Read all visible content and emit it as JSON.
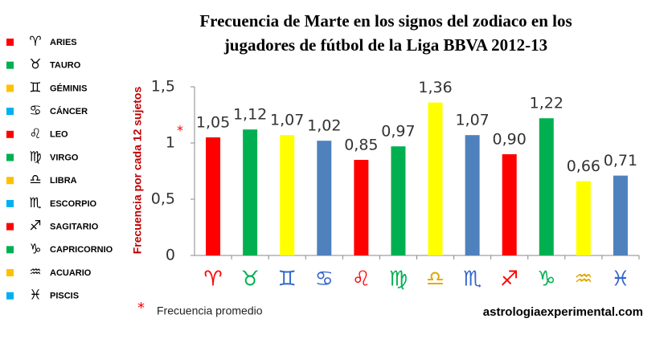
{
  "chart_data": {
    "type": "bar",
    "title": [
      "Frecuencia de Marte en los signos del zodiaco en los",
      "jugadores de fútbol de la Liga BBVA 2012-13"
    ],
    "y_label": "Frecuencia por cada 12 sujetos",
    "categories": [
      "♈",
      "♉",
      "♊",
      "♋",
      "♌",
      "♍",
      "♎",
      "♏",
      "♐",
      "♑",
      "♒",
      "♓"
    ],
    "symbol_colors": [
      "#ff0000",
      "#00b050",
      "#3366cc",
      "#3366cc",
      "#ff0000",
      "#00b050",
      "#e0a800",
      "#3366cc",
      "#ff0000",
      "#00b050",
      "#e0a800",
      "#3366cc"
    ],
    "values": [
      1.05,
      1.12,
      1.07,
      1.02,
      0.85,
      0.97,
      1.36,
      1.07,
      0.9,
      1.22,
      0.66,
      0.71
    ],
    "value_labels": [
      "1,05",
      "1,12",
      "1,07",
      "1,02",
      "0,85",
      "0,97",
      "1,36",
      "1,07",
      "0,90",
      "1,22",
      "0,66",
      "0,71"
    ],
    "colors": [
      "#ff0000",
      "#00b050",
      "#ffff00",
      "#4f81bd",
      "#ff0000",
      "#00b050",
      "#ffff00",
      "#4f81bd",
      "#ff0000",
      "#00b050",
      "#ffff00",
      "#4f81bd"
    ],
    "ylim": [
      0,
      1.5
    ],
    "yticks": [
      0,
      {
        "value": 0.5,
        "label": "0,5"
      },
      1,
      {
        "value": 1.5,
        "label": "1,5"
      }
    ],
    "grid": false,
    "legend": [
      {
        "symbol": "♈",
        "name": "ARIES",
        "color": "#ff0000"
      },
      {
        "symbol": "♉",
        "name": "TAURO",
        "color": "#00b050"
      },
      {
        "symbol": "♊",
        "name": "GÉMINIS",
        "color": "#ffc000"
      },
      {
        "symbol": "♋",
        "name": "CÁNCER",
        "color": "#00b0f0"
      },
      {
        "symbol": "♌",
        "name": "LEO",
        "color": "#ff0000"
      },
      {
        "symbol": "♍",
        "name": "VIRGO",
        "color": "#00b050"
      },
      {
        "symbol": "♎",
        "name": "LIBRA",
        "color": "#ffc000"
      },
      {
        "symbol": "♏",
        "name": "ESCORPIO",
        "color": "#00b0f0"
      },
      {
        "symbol": "♐",
        "name": "SAGITARIO",
        "color": "#ff0000"
      },
      {
        "symbol": "♑",
        "name": "CAPRICORNIO",
        "color": "#00b050"
      },
      {
        "symbol": "♒",
        "name": "ACUARIO",
        "color": "#ffc000"
      },
      {
        "symbol": "♓",
        "name": "PISCIS",
        "color": "#00b0f0"
      }
    ],
    "footnote_marker": "*",
    "footnote": "Frecuencia promedio",
    "source": "astrologiaexperimental.com"
  }
}
